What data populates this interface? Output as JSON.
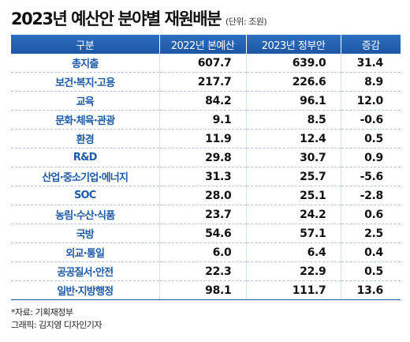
{
  "header": {
    "title": "2023년 예산안 분야별 재원배분",
    "unit": "(단위: 조원)"
  },
  "table": {
    "columns": [
      "구분",
      "2022년 본예산",
      "2023년 정부안",
      "증감"
    ],
    "rows": [
      {
        "label": "총지출",
        "v2022": "607.7",
        "v2023": "639.0",
        "diff": "31.4"
      },
      {
        "label": "보건·복지·고용",
        "v2022": "217.7",
        "v2023": "226.6",
        "diff": "8.9"
      },
      {
        "label": "교육",
        "v2022": "84.2",
        "v2023": "96.1",
        "diff": "12.0"
      },
      {
        "label": "문화·체육·관광",
        "v2022": "9.1",
        "v2023": "8.5",
        "diff": "-0.6"
      },
      {
        "label": "환경",
        "v2022": "11.9",
        "v2023": "12.4",
        "diff": "0.5"
      },
      {
        "label": "R&D",
        "v2022": "29.8",
        "v2023": "30.7",
        "diff": "0.9"
      },
      {
        "label": "산업·중소기업·에너지",
        "v2022": "31.3",
        "v2023": "25.7",
        "diff": "-5.6"
      },
      {
        "label": "SOC",
        "v2022": "28.0",
        "v2023": "25.1",
        "diff": "-2.8"
      },
      {
        "label": "농림·수산·식품",
        "v2022": "23.7",
        "v2023": "24.2",
        "diff": "0.6"
      },
      {
        "label": "국방",
        "v2022": "54.6",
        "v2023": "57.1",
        "diff": "2.5"
      },
      {
        "label": "외교·통일",
        "v2022": "6.0",
        "v2023": "6.4",
        "diff": "0.4"
      },
      {
        "label": "공공질서·안전",
        "v2022": "22.3",
        "v2023": "22.9",
        "diff": "0.5"
      },
      {
        "label": "일반·지방행정",
        "v2022": "98.1",
        "v2023": "111.7",
        "diff": "13.6"
      }
    ]
  },
  "footer": {
    "source": "*자료: 기획재정부",
    "credit": "그래픽: 김지영 디자인기자"
  },
  "colors": {
    "header_bg": "#1c56a3",
    "label_text": "#1d5aa8"
  }
}
